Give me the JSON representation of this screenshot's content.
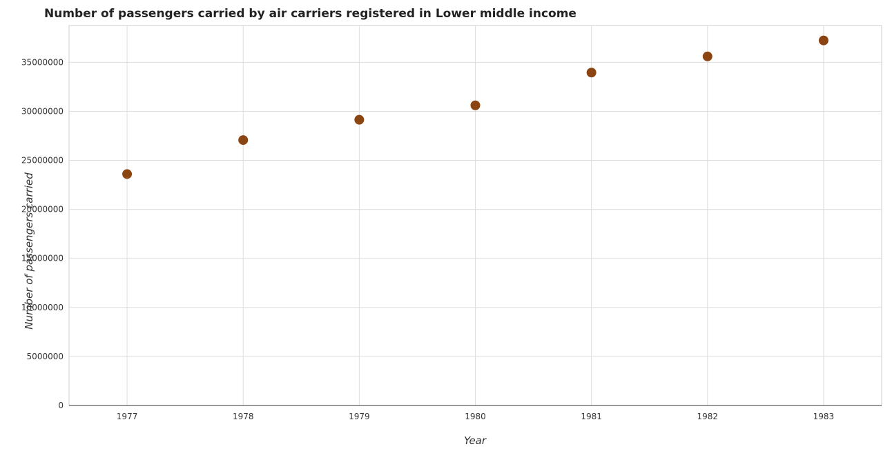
{
  "chart_data": {
    "type": "scatter",
    "title": "Number of passengers carried by air carriers registered in Lower middle income",
    "xlabel": "Year",
    "ylabel": "Number of passengers carried",
    "categories": [
      "1977",
      "1978",
      "1979",
      "1980",
      "1981",
      "1982",
      "1983"
    ],
    "values": [
      23600000,
      27070000,
      29140000,
      30610000,
      33950000,
      35600000,
      37230000
    ],
    "y_ticks": [
      "0",
      "5000000",
      "10000000",
      "15000000",
      "20000000",
      "25000000",
      "30000000",
      "35000000"
    ],
    "ylim": [
      0,
      38750000
    ],
    "grid": true,
    "marker_color": "#8b4513"
  }
}
